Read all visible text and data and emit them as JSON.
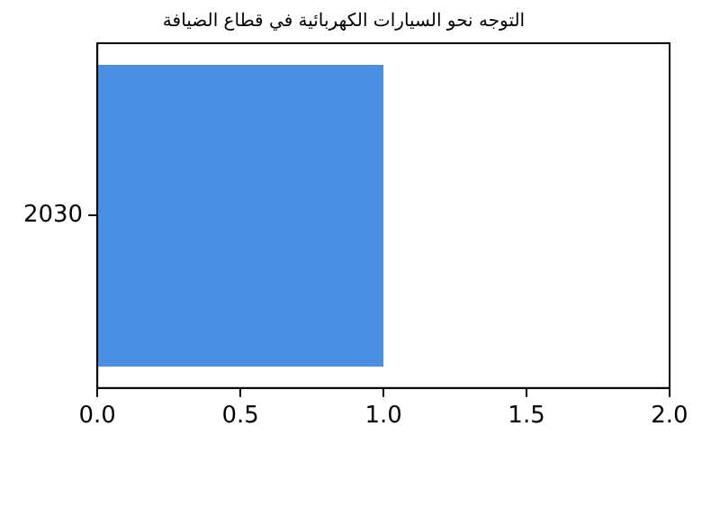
{
  "chart_data": {
    "type": "bar",
    "orientation": "horizontal",
    "title": "التوجه نحو السيارات الكهربائية في قطاع الضيافة",
    "categories": [
      "2030"
    ],
    "values": [
      1.0
    ],
    "color": "#4a90e2",
    "xlim": [
      0,
      2
    ],
    "xticks": [
      {
        "value": 0,
        "label": "0.0"
      },
      {
        "value": 0.5,
        "label": "0.5"
      },
      {
        "value": 1,
        "label": "1.0"
      },
      {
        "value": 1.5,
        "label": "1.5"
      },
      {
        "value": 2,
        "label": "2.0"
      }
    ],
    "grid": false,
    "legend": false
  }
}
